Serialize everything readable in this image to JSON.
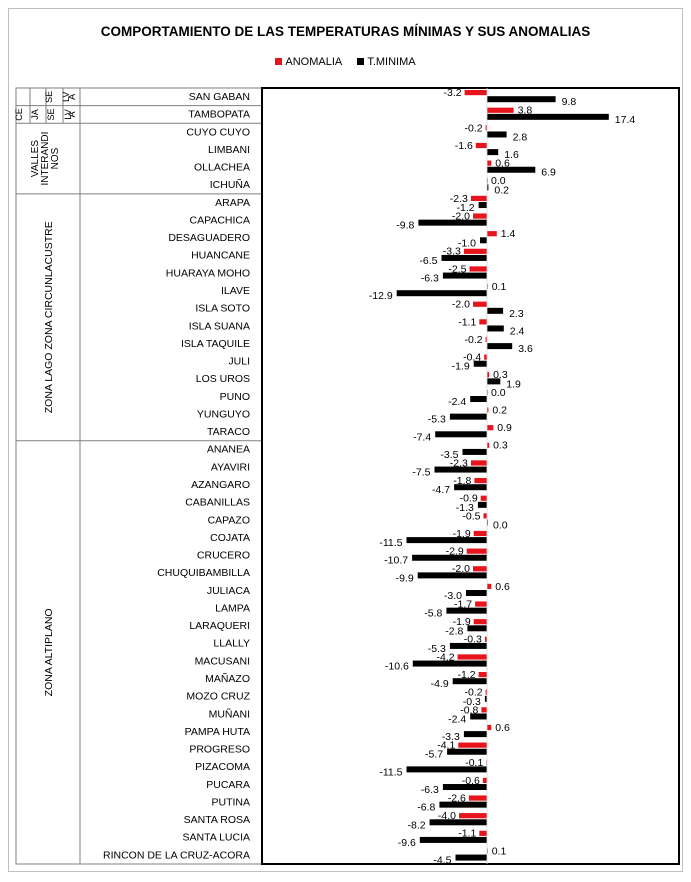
{
  "chart_data": {
    "type": "bar",
    "orientation": "horizontal",
    "title": "COMPORTAMIENTO DE LAS TEMPERATURAS MÍNIMAS Y SUS ANOMALIAS",
    "legend_position": "top",
    "colors": {
      "ANOMALIA": "#e8141c",
      "T.MINIMA": "#000000"
    },
    "series": [
      {
        "name": "ANOMALIA",
        "values": [
          -3.2,
          3.8,
          -0.2,
          -1.6,
          0.6,
          0.0,
          -2.3,
          -2.0,
          1.4,
          -3.3,
          -2.5,
          0.1,
          -2.0,
          -1.1,
          -0.2,
          -0.4,
          0.3,
          0.0,
          0.2,
          0.9,
          0.3,
          -2.3,
          -1.8,
          -0.9,
          -0.5,
          -1.9,
          -2.9,
          -2.0,
          0.6,
          -1.7,
          -1.9,
          -0.3,
          -4.2,
          -1.2,
          -0.2,
          -0.8,
          0.6,
          -4.1,
          -0.1,
          -0.6,
          -2.6,
          -4.0,
          -1.1,
          0.1
        ]
      },
      {
        "name": "T.MINIMA",
        "values": [
          9.8,
          17.4,
          2.8,
          1.6,
          6.9,
          0.2,
          -1.2,
          -9.8,
          -1.0,
          -6.5,
          -6.3,
          -12.9,
          2.3,
          2.4,
          3.6,
          -1.9,
          1.9,
          -2.4,
          -5.3,
          -7.4,
          -3.5,
          -7.5,
          -4.7,
          -1.3,
          0.0,
          -11.5,
          -10.7,
          -9.9,
          -3.0,
          -5.8,
          -2.8,
          -5.3,
          -10.6,
          -4.9,
          -0.3,
          -2.4,
          -3.3,
          -5.7,
          -11.5,
          -6.3,
          -6.8,
          -8.2,
          -9.6,
          -4.5
        ]
      }
    ],
    "categories": [
      "SAN GABAN",
      "TAMBOPATA",
      "CUYO CUYO",
      "LIMBANI",
      "OLLACHEA",
      "ICHUÑA",
      "ARAPA",
      "CAPACHICA",
      "DESAGUADERO",
      "HUANCANE",
      "HUARAYA MOHO",
      "ILAVE",
      "ISLA SOTO",
      "ISLA SUANA",
      "ISLA TAQUILE",
      "JULI",
      "LOS UROS",
      "PUNO",
      "YUNGUYO",
      "TARACO",
      "ANANEA",
      "AYAVIRI",
      "AZANGARO",
      "CABANILLAS",
      "CAPAZO",
      "COJATA",
      "CRUCERO",
      "CHUQUIBAMBILLA",
      "JULIACA",
      "LAMPA",
      "LARAQUERI",
      "LLALLY",
      "MACUSANI",
      "MAÑAZO",
      "MOZO CRUZ",
      "MUÑANI",
      "PAMPA HUTA",
      "PROGRESO",
      "PIZACOMA",
      "PUCARA",
      "PUTINA",
      "SANTA ROSA",
      "SANTA LUCIA",
      "RINCON DE LA CRUZ-ACORA"
    ],
    "group_labels": [
      {
        "text": "SE LV A",
        "lines": [
          "SE",
          "LV",
          "A"
        ],
        "start": 0,
        "end": 0
      },
      {
        "text": "CE JA SE LV A",
        "lines": [
          "CE",
          "JA",
          "SE",
          "LV",
          "A"
        ],
        "start": 1,
        "end": 1
      },
      {
        "text": "VALLES INTERANDINOS",
        "lines": [
          "VALLES",
          "INTERANDI",
          "NOS"
        ],
        "start": 2,
        "end": 5
      },
      {
        "text": "ZONA LAGO ZONA CIRCUNLACUSTRE",
        "lines": [
          "ZONA LAGO ZONA CIRCUNLACUSTRE"
        ],
        "start": 6,
        "end": 19
      },
      {
        "text": "ZONA ALTIPLANO",
        "lines": [
          "ZONA ALTIPLANO"
        ],
        "start": 20,
        "end": 43
      }
    ]
  }
}
